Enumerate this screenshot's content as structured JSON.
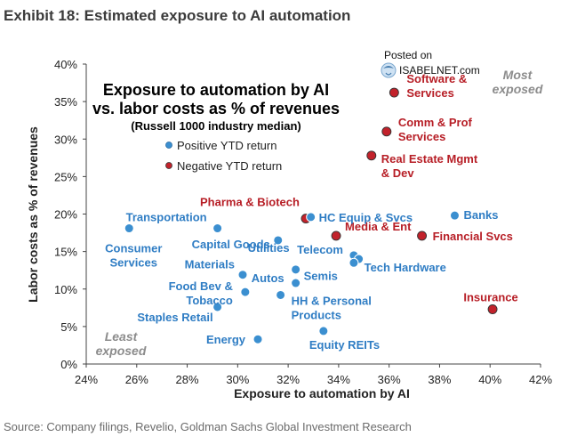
{
  "header": {
    "title": "Exhibit 18: Estimated exposure to AI automation"
  },
  "source": "Source: Company filings, Revelio, Goldman Sachs Global Investment Research",
  "watermark": {
    "posted_on": "Posted on",
    "site": "ISABELNET.com"
  },
  "colors": {
    "positive": "#3b8fd0",
    "negative": "#c2222b",
    "positive_text": "#2f7dc4",
    "negative_text": "#b71e26",
    "corner_text": "#8c8c8c"
  },
  "chart_data": {
    "type": "scatter",
    "title": "Exposure to automation by AI",
    "title_line2": "vs. labor costs as % of revenues",
    "subtitle": "(Russell 1000 industry median)",
    "xlabel": "Exposure to automation by AI",
    "ylabel": "Labor costs as % of revenues",
    "xlim": [
      0.24,
      0.42
    ],
    "ylim": [
      0,
      0.4
    ],
    "xticks": [
      "24%",
      "26%",
      "28%",
      "30%",
      "32%",
      "34%",
      "36%",
      "38%",
      "40%",
      "42%"
    ],
    "yticks": [
      "0%",
      "5%",
      "10%",
      "15%",
      "20%",
      "25%",
      "30%",
      "35%",
      "40%"
    ],
    "grid": false,
    "legend": [
      {
        "label": "Positive YTD return",
        "group": "positive"
      },
      {
        "label": "Negative YTD return",
        "group": "negative"
      }
    ],
    "corner_labels": {
      "top_right": [
        "Most",
        "exposed"
      ],
      "bottom_left": [
        "Least",
        "exposed"
      ]
    },
    "points": [
      {
        "label": "Software & Services",
        "lines": [
          "Software &",
          "Services"
        ],
        "x": 0.362,
        "y": 0.362,
        "group": "negative"
      },
      {
        "label": "Comm & Prof Services",
        "lines": [
          "Comm & Prof",
          "Services"
        ],
        "x": 0.359,
        "y": 0.31,
        "group": "negative"
      },
      {
        "label": "Real Estate Mgmt & Dev",
        "lines": [
          "Real Estate  Mgmt",
          "& Dev"
        ],
        "x": 0.353,
        "y": 0.278,
        "group": "negative"
      },
      {
        "label": "Pharma & Biotech",
        "lines": [
          "Pharma & Biotech"
        ],
        "x": 0.327,
        "y": 0.194,
        "group": "negative"
      },
      {
        "label": "Media & Ent",
        "lines": [
          "Media & Ent"
        ],
        "x": 0.339,
        "y": 0.171,
        "group": "negative"
      },
      {
        "label": "Financial Svcs",
        "lines": [
          "Financial Svcs"
        ],
        "x": 0.373,
        "y": 0.171,
        "group": "negative"
      },
      {
        "label": "Insurance",
        "lines": [
          "Insurance"
        ],
        "x": 0.401,
        "y": 0.073,
        "group": "negative"
      },
      {
        "label": "HC Equip & Svcs",
        "lines": [
          "HC Equip & Svcs"
        ],
        "x": 0.329,
        "y": 0.196,
        "group": "positive"
      },
      {
        "label": "Banks",
        "lines": [
          "Banks"
        ],
        "x": 0.386,
        "y": 0.198,
        "group": "positive"
      },
      {
        "label": "Transportation",
        "lines": [
          "Transportation"
        ],
        "x": 0.292,
        "y": 0.181,
        "group": "positive"
      },
      {
        "label": "Consumer Services",
        "lines": [
          "Consumer",
          "Services"
        ],
        "x": 0.257,
        "y": 0.181,
        "group": "positive"
      },
      {
        "label": "Capital Goods",
        "lines": [
          "Capital Goods"
        ],
        "x": 0.316,
        "y": 0.165,
        "group": "positive"
      },
      {
        "label": "Telecom",
        "lines": [
          "Telecom"
        ],
        "x": 0.346,
        "y": 0.145,
        "group": "positive"
      },
      {
        "label": "Tech Hardware",
        "lines": [
          "Tech Hardware"
        ],
        "x": 0.348,
        "y": 0.14,
        "group": "positive"
      },
      {
        "label": "Semis",
        "lines": [
          "Semis"
        ],
        "x": 0.346,
        "y": 0.135,
        "group": "positive"
      },
      {
        "label": "Utilities",
        "lines": [
          "Utilities"
        ],
        "x": 0.323,
        "y": 0.126,
        "group": "positive"
      },
      {
        "label": "Materials",
        "lines": [
          "Materials"
        ],
        "x": 0.302,
        "y": 0.119,
        "group": "positive"
      },
      {
        "label": "Autos",
        "lines": [
          "Autos"
        ],
        "x": 0.323,
        "y": 0.108,
        "group": "positive"
      },
      {
        "label": "Food Bev & Tobacco",
        "lines": [
          "Food Bev &",
          "Tobacco"
        ],
        "x": 0.303,
        "y": 0.096,
        "group": "positive"
      },
      {
        "label": "HH & Personal Products",
        "lines": [
          "HH & Personal",
          "Products"
        ],
        "x": 0.317,
        "y": 0.092,
        "group": "positive"
      },
      {
        "label": "Staples Retail",
        "lines": [
          "Staples Retail"
        ],
        "x": 0.292,
        "y": 0.076,
        "group": "positive"
      },
      {
        "label": "Energy",
        "lines": [
          "Energy"
        ],
        "x": 0.308,
        "y": 0.033,
        "group": "positive"
      },
      {
        "label": "Equity REITs",
        "lines": [
          "Equity REITs"
        ],
        "x": 0.334,
        "y": 0.044,
        "group": "positive"
      }
    ]
  }
}
